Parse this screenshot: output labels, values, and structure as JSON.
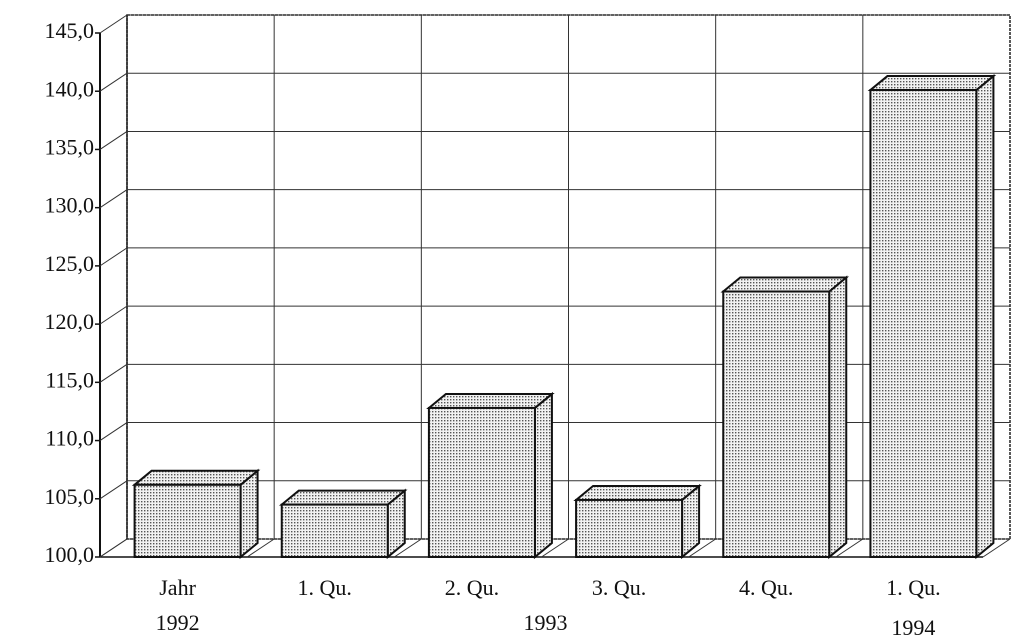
{
  "chart_data": {
    "type": "bar3d",
    "categories": [
      "Jahr",
      "1. Qu.",
      "2. Qu.",
      "3. Qu.",
      "4. Qu.",
      "1. Qu."
    ],
    "groups": [
      "1992",
      "1993",
      "1994"
    ],
    "values": [
      106.2,
      104.5,
      112.8,
      104.9,
      122.8,
      140.1
    ],
    "color": "#c8c8c8",
    "ylim": [
      100,
      145
    ],
    "yticks": [
      {
        "value": 100,
        "label": "100,0"
      },
      {
        "value": 105,
        "label": "105,0"
      },
      {
        "value": 110,
        "label": "110,0"
      },
      {
        "value": 115,
        "label": "115,0"
      },
      {
        "value": 120,
        "label": "120,0"
      },
      {
        "value": 125,
        "label": "125,0"
      },
      {
        "value": 130,
        "label": "130,0"
      },
      {
        "value": 135,
        "label": "135,0"
      },
      {
        "value": 140,
        "label": "140,0"
      },
      {
        "value": 145,
        "label": "145,0"
      }
    ],
    "grid": true
  }
}
